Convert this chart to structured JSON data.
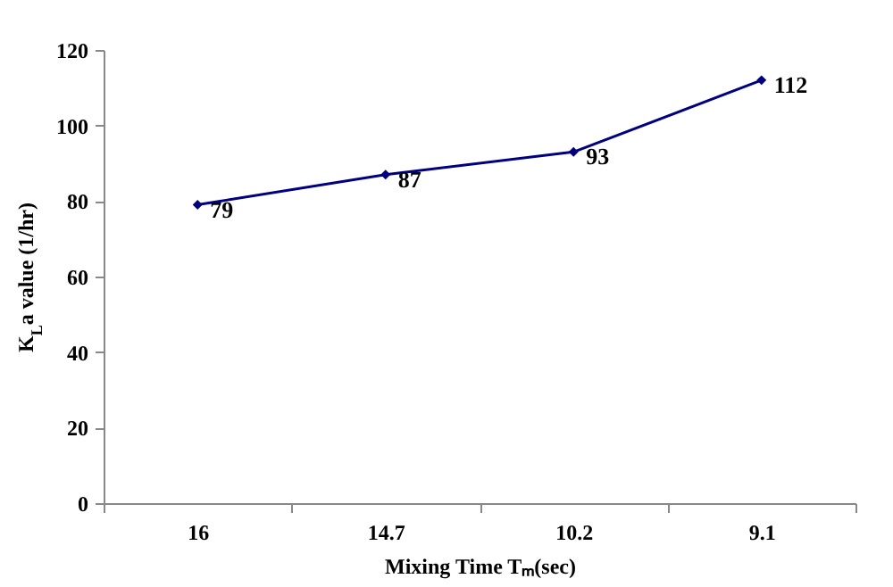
{
  "chart_data": {
    "type": "line",
    "xlabel": "Mixing Time Tₘ(sec)",
    "ylabel": "K$_{L}$a value (1/hr)",
    "categories": [
      "16",
      "14.7",
      "10.2",
      "9.1"
    ],
    "series": [
      {
        "color": "#000080",
        "values": [
          79,
          87,
          93,
          112
        ]
      }
    ],
    "ylim": [
      0,
      120
    ],
    "yticks": [
      0,
      20,
      40,
      60,
      80,
      100,
      120
    ],
    "marker": "diamond",
    "line_style": "solid",
    "data_labels": true,
    "grid": false,
    "legend": false
  }
}
